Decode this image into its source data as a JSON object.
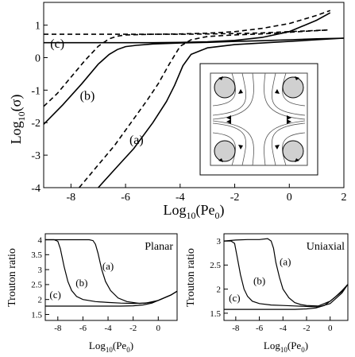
{
  "chart_data": [
    {
      "type": "line",
      "title": "",
      "xlabel": "Log10(Pe0)",
      "ylabel": "Log10(σ)",
      "xlim": [
        -9,
        2
      ],
      "ylim": [
        -4,
        1.7
      ],
      "xticks": [
        -8,
        -6,
        -4,
        -2,
        0,
        2
      ],
      "yticks": [
        -4,
        -3,
        -2,
        -1,
        0,
        1
      ],
      "grid": false,
      "curve_labels": [
        {
          "text": "(a)",
          "x": -5.6,
          "y": -2.65
        },
        {
          "text": "(b)",
          "x": -7.4,
          "y": -1.3
        },
        {
          "text": "(c)",
          "x": -8.5,
          "y": 0.3
        }
      ],
      "inset": {
        "description_icons": [
          "circle-with-arrow",
          "circle-with-arrow",
          "circle-with-arrow",
          "circle-with-arrow"
        ]
      },
      "series": [
        {
          "style": "solid",
          "x": [
            -9,
            -8,
            -7,
            -6.5,
            -6,
            -5,
            -4,
            -3,
            -2,
            -1,
            0,
            1,
            1.5
          ],
          "y": [
            0.46,
            0.46,
            0.46,
            0.46,
            0.46,
            0.46,
            0.47,
            0.49,
            0.53,
            0.62,
            0.8,
            1.15,
            1.38
          ]
        },
        {
          "style": "dashed",
          "x": [
            -9,
            -8,
            -7,
            -6,
            -5,
            -4,
            -3,
            -2,
            -1,
            0,
            1,
            1.5
          ],
          "y": [
            0.72,
            0.72,
            0.72,
            0.72,
            0.72,
            0.73,
            0.75,
            0.8,
            0.9,
            1.05,
            1.3,
            1.45
          ]
        },
        {
          "style": "solid",
          "x": [
            -9,
            -8.3,
            -7.6,
            -7,
            -6.6,
            -6.3,
            -6.0,
            -5.6,
            -5.0,
            -4,
            -3,
            -2,
            -1,
            0,
            1,
            2
          ],
          "y": [
            -2.05,
            -1.45,
            -0.8,
            -0.2,
            0.1,
            0.25,
            0.34,
            0.38,
            0.42,
            0.45,
            0.47,
            0.5,
            0.52,
            0.55,
            0.58,
            0.6
          ]
        },
        {
          "style": "dashed",
          "x": [
            -9,
            -8.5,
            -8,
            -7.5,
            -7.0,
            -6.6,
            -6.3,
            -6.0,
            -5.5,
            -5,
            -4,
            -3,
            -2,
            -1,
            0,
            1.4
          ],
          "y": [
            -1.5,
            -1.1,
            -0.6,
            -0.1,
            0.35,
            0.58,
            0.66,
            0.7,
            0.71,
            0.72,
            0.72,
            0.73,
            0.74,
            0.76,
            0.8,
            0.85
          ]
        },
        {
          "style": "solid",
          "x": [
            -7.0,
            -6.3,
            -5.7,
            -5.0,
            -4.5,
            -4.2,
            -3.9,
            -3.6,
            -3.0,
            -2,
            -1,
            0,
            1,
            2
          ],
          "y": [
            -4.0,
            -3.35,
            -2.8,
            -2.0,
            -1.35,
            -0.85,
            -0.25,
            0.1,
            0.3,
            0.4,
            0.45,
            0.5,
            0.55,
            0.6
          ]
        },
        {
          "style": "dashed",
          "x": [
            -7.7,
            -7.0,
            -6.4,
            -5.8,
            -5.2,
            -4.8,
            -4.4,
            -4.0,
            -3.6,
            -3.0,
            -2,
            -1,
            0,
            1.4
          ],
          "y": [
            -4.0,
            -3.3,
            -2.7,
            -2.0,
            -1.3,
            -0.8,
            -0.2,
            0.35,
            0.55,
            0.65,
            0.7,
            0.73,
            0.78,
            0.85
          ]
        }
      ]
    },
    {
      "type": "line",
      "title": "Planar",
      "xlabel": "Log10(Pe0)",
      "ylabel": "Trouton ratio",
      "xlim": [
        -9,
        1.5
      ],
      "ylim": [
        1.3,
        4.2
      ],
      "xticks": [
        -8,
        -6,
        -4,
        -2,
        0
      ],
      "yticks": [
        1.5,
        2,
        2.5,
        3,
        3.5,
        4
      ],
      "grid": false,
      "curve_labels": [
        {
          "text": "(a)",
          "x": -4.0,
          "y": 3.0
        },
        {
          "text": "(b)",
          "x": -6.1,
          "y": 2.45
        },
        {
          "text": "(c)",
          "x": -8.2,
          "y": 2.05
        }
      ],
      "series": [
        {
          "style": "solid",
          "x": [
            -9,
            -6,
            -5.5,
            -5.2,
            -5.0,
            -4.8,
            -4.5,
            -4.2,
            -3.8,
            -3.2,
            -2.5,
            -1.5,
            -0.5,
            0,
            1,
            1.5
          ],
          "y": [
            4.0,
            4.0,
            4.0,
            3.97,
            3.85,
            3.55,
            3.0,
            2.6,
            2.3,
            2.05,
            1.93,
            1.87,
            1.9,
            1.97,
            2.15,
            2.28
          ]
        },
        {
          "style": "solid",
          "x": [
            -9,
            -8.3,
            -8.0,
            -7.8,
            -7.5,
            -7.2,
            -6.9,
            -6.5,
            -6.0,
            -5.0,
            -4,
            -3,
            -2,
            -1,
            0,
            1,
            1.5
          ],
          "y": [
            4.0,
            4.0,
            3.95,
            3.7,
            3.1,
            2.6,
            2.3,
            2.1,
            2.0,
            1.93,
            1.9,
            1.88,
            1.87,
            1.88,
            1.97,
            2.15,
            2.28
          ]
        },
        {
          "style": "solid",
          "x": [
            -9,
            -7,
            -5,
            -3,
            -2,
            -1.2,
            -0.5,
            0,
            0.5,
            1,
            1.5
          ],
          "y": [
            1.78,
            1.78,
            1.78,
            1.78,
            1.79,
            1.82,
            1.88,
            1.97,
            2.06,
            2.15,
            2.28
          ]
        }
      ]
    },
    {
      "type": "line",
      "title": "Uniaxial",
      "xlabel": "Log10(Pe0)",
      "ylabel": "Trouton ratio",
      "xlim": [
        -9,
        1.5
      ],
      "ylim": [
        1.35,
        3.15
      ],
      "xticks": [
        -8,
        -6,
        -4,
        -2,
        0
      ],
      "yticks": [
        1.5,
        2,
        2.5,
        3
      ],
      "grid": false,
      "curve_labels": [
        {
          "text": "(a)",
          "x": -3.8,
          "y": 2.5
        },
        {
          "text": "(b)",
          "x": -6.0,
          "y": 2.1
        },
        {
          "text": "(c)",
          "x": -8.1,
          "y": 1.75
        }
      ],
      "series": [
        {
          "style": "solid",
          "x": [
            -9,
            -8,
            -7,
            -6,
            -5.3,
            -5.0,
            -4.8,
            -4.6,
            -4.3,
            -4.0,
            -3.5,
            -3.0,
            -2.5,
            -2,
            -1,
            0,
            1,
            1.5
          ],
          "y": [
            3.0,
            3.02,
            3.03,
            3.03,
            3.05,
            3.0,
            2.85,
            2.55,
            2.25,
            2.0,
            1.82,
            1.72,
            1.68,
            1.66,
            1.65,
            1.75,
            1.95,
            2.1
          ]
        },
        {
          "style": "solid",
          "x": [
            -9,
            -8.4,
            -8.1,
            -7.9,
            -7.6,
            -7.3,
            -7.0,
            -6.6,
            -6.0,
            -5,
            -4,
            -3,
            -2,
            -1,
            0,
            1,
            1.5
          ],
          "y": [
            3.0,
            3.0,
            2.95,
            2.7,
            2.3,
            2.0,
            1.85,
            1.75,
            1.7,
            1.67,
            1.66,
            1.65,
            1.64,
            1.63,
            1.7,
            1.92,
            2.1
          ]
        },
        {
          "style": "solid",
          "x": [
            -9,
            -7,
            -5,
            -3,
            -2,
            -1.2,
            -0.5,
            0,
            0.5,
            1,
            1.5
          ],
          "y": [
            1.58,
            1.58,
            1.58,
            1.58,
            1.59,
            1.61,
            1.66,
            1.75,
            1.85,
            1.97,
            2.1
          ]
        }
      ]
    }
  ]
}
